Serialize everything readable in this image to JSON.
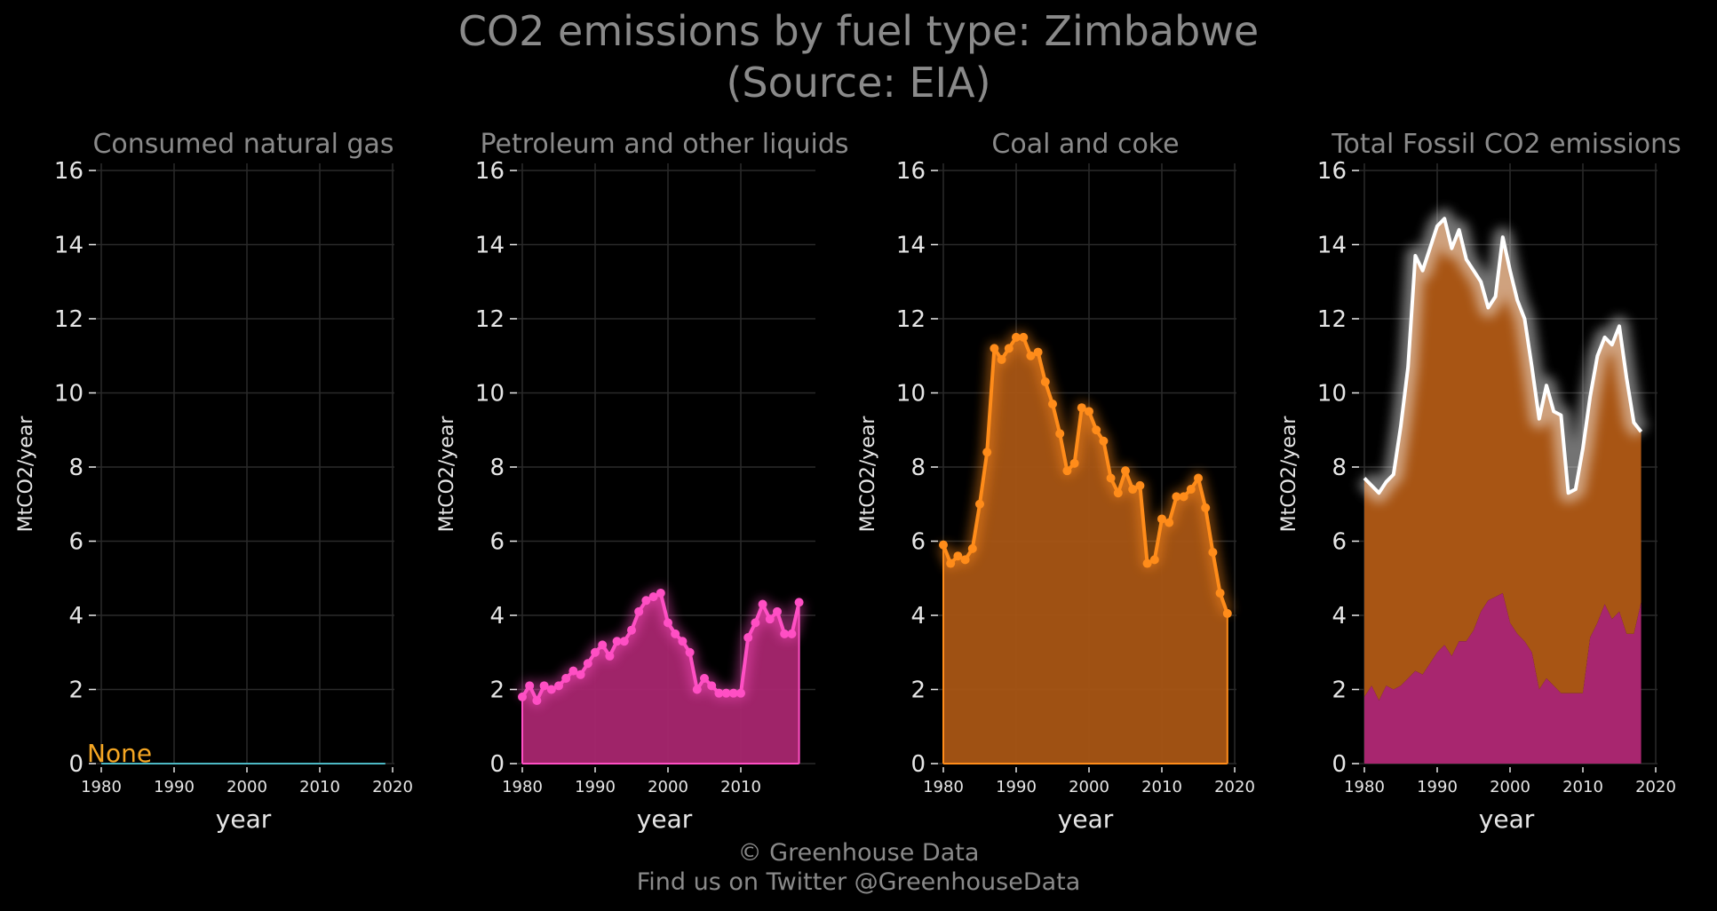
{
  "title_line1": "CO2 emissions by fuel type: Zimbabwe",
  "title_line2": "(Source: EIA)",
  "footer_line1": "© Greenhouse Data",
  "footer_line2": "Find us on Twitter @GreenhouseData",
  "colors": {
    "background": "#000000",
    "grid": "#2a2a2a",
    "text": "#8a8a8a",
    "tick_text": "#e6e6e6",
    "gas": "#4db8c4",
    "none_label": "#f5a623",
    "petroleum_line": "#ff4fc4",
    "petroleum_fill": "#a8266f",
    "coal_line": "#ff8c1a",
    "coal_fill": "#a85514",
    "total_line": "#ffffff"
  },
  "chart_data": [
    {
      "type": "line",
      "title": "Consumed natural gas",
      "xlabel": "year",
      "ylabel": "MtCO2/year",
      "xlim": [
        1980,
        2020
      ],
      "ylim": [
        0,
        16
      ],
      "xticks": [
        1980,
        1990,
        2000,
        2010,
        2020
      ],
      "yticks": [
        0,
        2,
        4,
        6,
        8,
        10,
        12,
        14,
        16
      ],
      "grid": true,
      "annotation": "None",
      "series": [
        {
          "x": [
            1980,
            2019
          ],
          "values": [
            0,
            0
          ]
        }
      ]
    },
    {
      "type": "area",
      "title": "Petroleum and other liquids",
      "xlabel": "year",
      "ylabel": "MtCO2/year",
      "xlim": [
        1980,
        2018
      ],
      "ylim": [
        0,
        16
      ],
      "xticks": [
        1980,
        1990,
        2000,
        2010
      ],
      "yticks": [
        0,
        2,
        4,
        6,
        8,
        10,
        12,
        14,
        16
      ],
      "grid": true,
      "series": [
        {
          "x": [
            1980,
            1981,
            1982,
            1983,
            1984,
            1985,
            1986,
            1987,
            1988,
            1989,
            1990,
            1991,
            1992,
            1993,
            1994,
            1995,
            1996,
            1997,
            1998,
            1999,
            2000,
            2001,
            2002,
            2003,
            2004,
            2005,
            2006,
            2007,
            2008,
            2009,
            2010,
            2011,
            2012,
            2013,
            2014,
            2015,
            2016,
            2017,
            2018
          ],
          "values": [
            1.8,
            2.1,
            1.7,
            2.1,
            2.0,
            2.1,
            2.3,
            2.5,
            2.4,
            2.7,
            3.0,
            3.2,
            2.9,
            3.3,
            3.3,
            3.6,
            4.1,
            4.4,
            4.5,
            4.6,
            3.8,
            3.5,
            3.3,
            3.0,
            2.0,
            2.3,
            2.1,
            1.9,
            1.9,
            1.9,
            1.9,
            3.4,
            3.8,
            4.3,
            3.9,
            4.1,
            3.5,
            3.5,
            4.35
          ]
        }
      ]
    },
    {
      "type": "area",
      "title": "Coal and coke",
      "xlabel": "year",
      "ylabel": "MtCO2/year",
      "xlim": [
        1980,
        2020
      ],
      "ylim": [
        0,
        16
      ],
      "xticks": [
        1980,
        1990,
        2000,
        2010,
        2020
      ],
      "yticks": [
        0,
        2,
        4,
        6,
        8,
        10,
        12,
        14,
        16
      ],
      "grid": true,
      "series": [
        {
          "x": [
            1980,
            1981,
            1982,
            1983,
            1984,
            1985,
            1986,
            1987,
            1988,
            1989,
            1990,
            1991,
            1992,
            1993,
            1994,
            1995,
            1996,
            1997,
            1998,
            1999,
            2000,
            2001,
            2002,
            2003,
            2004,
            2005,
            2006,
            2007,
            2008,
            2009,
            2010,
            2011,
            2012,
            2013,
            2014,
            2015,
            2016,
            2017,
            2018,
            2019
          ],
          "values": [
            5.9,
            5.4,
            5.6,
            5.5,
            5.8,
            7.0,
            8.4,
            11.2,
            10.9,
            11.2,
            11.5,
            11.5,
            11.0,
            11.1,
            10.3,
            9.7,
            8.9,
            7.9,
            8.1,
            9.6,
            9.5,
            9.0,
            8.7,
            7.7,
            7.3,
            7.9,
            7.4,
            7.5,
            5.4,
            5.5,
            6.6,
            6.5,
            7.2,
            7.2,
            7.4,
            7.7,
            6.9,
            5.7,
            4.6,
            4.05
          ]
        }
      ]
    },
    {
      "type": "area",
      "title": "Total Fossil CO2 emissions",
      "xlabel": "year",
      "ylabel": "MtCO2/year",
      "xlim": [
        1980,
        2020
      ],
      "ylim": [
        0,
        16
      ],
      "xticks": [
        1980,
        1990,
        2000,
        2010,
        2020
      ],
      "yticks": [
        0,
        2,
        4,
        6,
        8,
        10,
        12,
        14,
        16
      ],
      "grid": true,
      "stacked": true,
      "series": [
        {
          "x": [
            1980,
            1981,
            1982,
            1983,
            1984,
            1985,
            1986,
            1987,
            1988,
            1989,
            1990,
            1991,
            1992,
            1993,
            1994,
            1995,
            1996,
            1997,
            1998,
            1999,
            2000,
            2001,
            2002,
            2003,
            2004,
            2005,
            2006,
            2007,
            2008,
            2009,
            2010,
            2011,
            2012,
            2013,
            2014,
            2015,
            2016,
            2017,
            2018
          ],
          "values": [
            1.8,
            2.1,
            1.7,
            2.1,
            2.0,
            2.1,
            2.3,
            2.5,
            2.4,
            2.7,
            3.0,
            3.2,
            2.9,
            3.3,
            3.3,
            3.6,
            4.1,
            4.4,
            4.5,
            4.6,
            3.8,
            3.5,
            3.3,
            3.0,
            2.0,
            2.3,
            2.1,
            1.9,
            1.9,
            1.9,
            1.9,
            3.4,
            3.8,
            4.3,
            3.9,
            4.1,
            3.5,
            3.5,
            4.35
          ]
        },
        {
          "x": [
            1980,
            1981,
            1982,
            1983,
            1984,
            1985,
            1986,
            1987,
            1988,
            1989,
            1990,
            1991,
            1992,
            1993,
            1994,
            1995,
            1996,
            1997,
            1998,
            1999,
            2000,
            2001,
            2002,
            2003,
            2004,
            2005,
            2006,
            2007,
            2008,
            2009,
            2010,
            2011,
            2012,
            2013,
            2014,
            2015,
            2016,
            2017,
            2018
          ],
          "values": [
            5.9,
            5.4,
            5.6,
            5.5,
            5.8,
            7.0,
            8.4,
            11.2,
            10.9,
            11.2,
            11.5,
            11.5,
            11.0,
            11.1,
            10.3,
            9.7,
            8.9,
            7.9,
            8.1,
            9.6,
            9.5,
            9.0,
            8.7,
            7.7,
            7.3,
            7.9,
            7.4,
            7.5,
            5.4,
            5.5,
            6.6,
            6.5,
            7.2,
            7.2,
            7.4,
            7.7,
            6.9,
            5.7,
            4.6
          ]
        },
        {
          "x": [
            1980,
            1981,
            1982,
            1983,
            1984,
            1985,
            1986,
            1987,
            1988,
            1989,
            1990,
            1991,
            1992,
            1993,
            1994,
            1995,
            1996,
            1997,
            1998,
            1999,
            2000,
            2001,
            2002,
            2003,
            2004,
            2005,
            2006,
            2007,
            2008,
            2009,
            2010,
            2011,
            2012,
            2013,
            2014,
            2015,
            2016,
            2017,
            2018
          ],
          "values": [
            7.7,
            7.5,
            7.3,
            7.6,
            7.8,
            9.1,
            10.7,
            13.7,
            13.3,
            13.9,
            14.5,
            14.7,
            13.9,
            14.4,
            13.6,
            13.3,
            13.0,
            12.3,
            12.6,
            14.2,
            13.3,
            12.5,
            12.0,
            10.7,
            9.3,
            10.2,
            9.5,
            9.4,
            7.3,
            7.4,
            8.5,
            9.9,
            11.0,
            11.5,
            11.3,
            11.8,
            10.4,
            9.2,
            8.95
          ]
        }
      ]
    }
  ]
}
